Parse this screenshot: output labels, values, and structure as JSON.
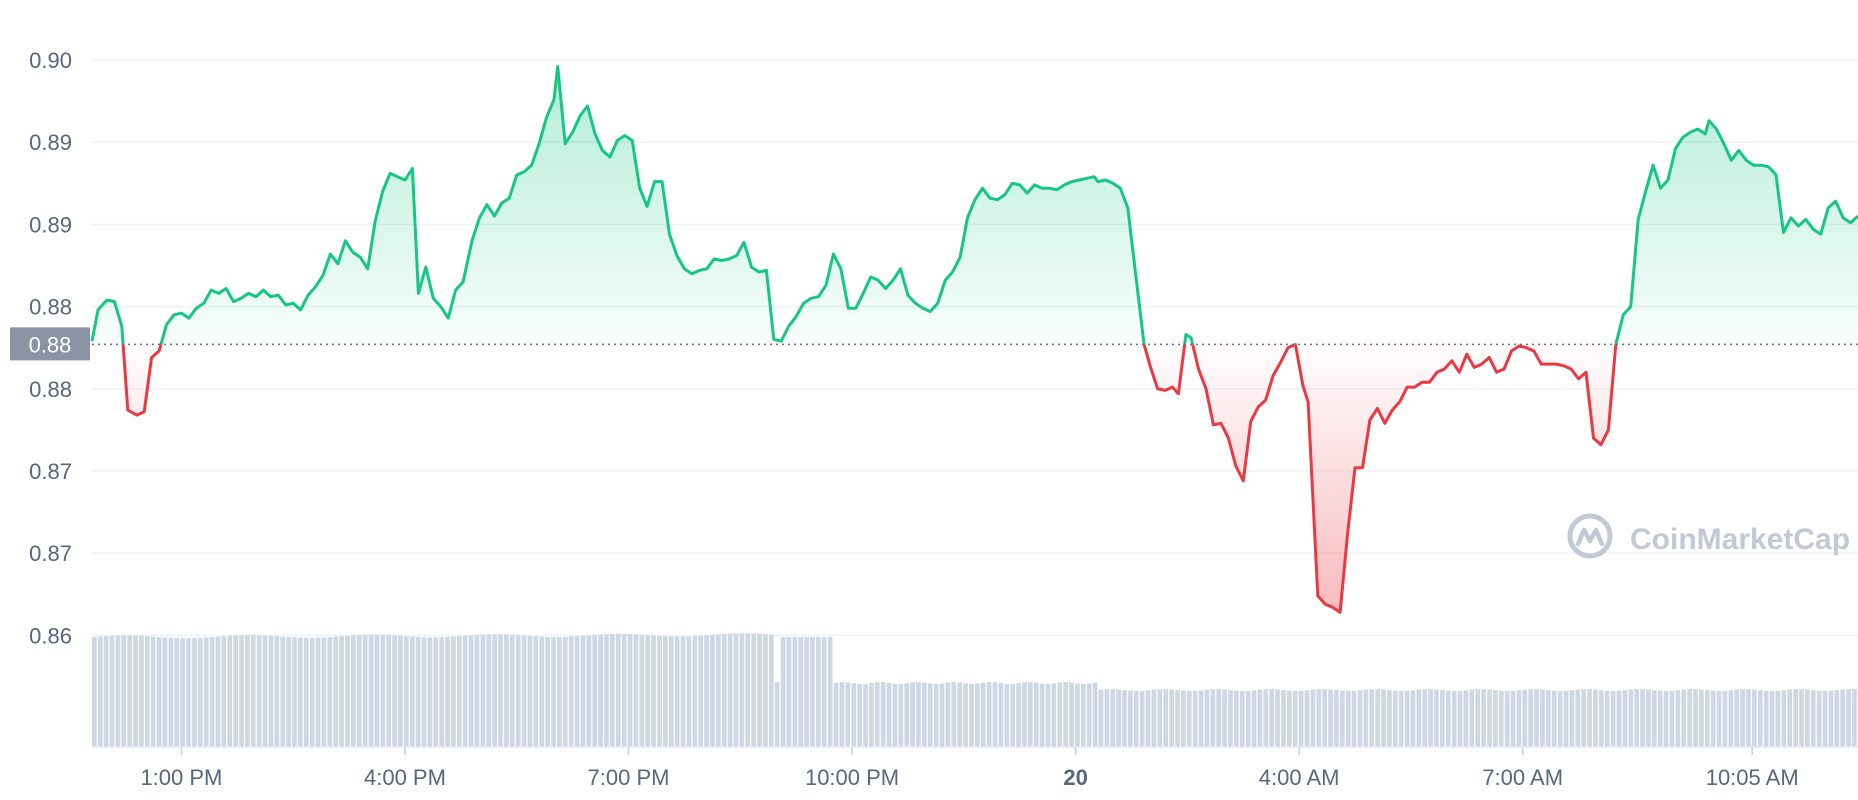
{
  "chart_data": {
    "type": "area",
    "title": "",
    "watermark": "CoinMarketCap",
    "y_ticks": [
      "0.90",
      "0.89",
      "0.89",
      "0.88",
      "0.88",
      "0.87",
      "0.87",
      "0.86"
    ],
    "y_tick_values": [
      0.9,
      0.895,
      0.89,
      0.885,
      0.88,
      0.875,
      0.87,
      0.865
    ],
    "ylim": [
      0.8618,
      0.9017
    ],
    "x_ticks": [
      {
        "label": "1:00 PM",
        "t": 1.0,
        "bold": false
      },
      {
        "label": "4:00 PM",
        "t": 4.0,
        "bold": false
      },
      {
        "label": "7:00 PM",
        "t": 7.0,
        "bold": false
      },
      {
        "label": "10:00 PM",
        "t": 10.0,
        "bold": false
      },
      {
        "label": "20",
        "t": 13.0,
        "bold": true
      },
      {
        "label": "4:00 AM",
        "t": 16.0,
        "bold": false
      },
      {
        "label": "7:00 AM",
        "t": 19.0,
        "bold": false
      },
      {
        "label": "10:05 AM",
        "t": 22.08,
        "bold": false
      }
    ],
    "xlim": [
      -0.2,
      23.5
    ],
    "baseline_value": 0.8827,
    "baseline_label": "0.88",
    "colors": {
      "above": "#16c784",
      "below": "#ea3943",
      "volume": "#cfd6e4",
      "grid": "#eff2f5",
      "badge": "#8993a4"
    },
    "price": [
      [
        -0.2,
        0.8829
      ],
      [
        -0.12,
        0.8848
      ],
      [
        0.0,
        0.8854
      ],
      [
        0.1,
        0.8853
      ],
      [
        0.2,
        0.8838
      ],
      [
        0.28,
        0.8787
      ],
      [
        0.4,
        0.8784
      ],
      [
        0.5,
        0.8786
      ],
      [
        0.6,
        0.8819
      ],
      [
        0.7,
        0.8823
      ],
      [
        0.8,
        0.8839
      ],
      [
        0.9,
        0.8845
      ],
      [
        1.0,
        0.8846
      ],
      [
        1.1,
        0.8843
      ],
      [
        1.2,
        0.8849
      ],
      [
        1.3,
        0.8852
      ],
      [
        1.4,
        0.886
      ],
      [
        1.5,
        0.8858
      ],
      [
        1.6,
        0.8861
      ],
      [
        1.7,
        0.8853
      ],
      [
        1.8,
        0.8855
      ],
      [
        1.9,
        0.8858
      ],
      [
        2.0,
        0.8856
      ],
      [
        2.1,
        0.886
      ],
      [
        2.2,
        0.8856
      ],
      [
        2.3,
        0.8857
      ],
      [
        2.4,
        0.8851
      ],
      [
        2.5,
        0.8852
      ],
      [
        2.6,
        0.8848
      ],
      [
        2.7,
        0.8857
      ],
      [
        2.8,
        0.8862
      ],
      [
        2.9,
        0.8869
      ],
      [
        3.0,
        0.8882
      ],
      [
        3.1,
        0.8876
      ],
      [
        3.2,
        0.889
      ],
      [
        3.3,
        0.8883
      ],
      [
        3.4,
        0.888
      ],
      [
        3.5,
        0.8873
      ],
      [
        3.6,
        0.8902
      ],
      [
        3.7,
        0.892
      ],
      [
        3.8,
        0.8931
      ],
      [
        3.9,
        0.8929
      ],
      [
        4.0,
        0.8927
      ],
      [
        4.1,
        0.8934
      ],
      [
        4.18,
        0.8858
      ],
      [
        4.28,
        0.8874
      ],
      [
        4.38,
        0.8855
      ],
      [
        4.48,
        0.885
      ],
      [
        4.58,
        0.8843
      ],
      [
        4.68,
        0.886
      ],
      [
        4.78,
        0.8865
      ],
      [
        4.9,
        0.889
      ],
      [
        5.0,
        0.8904
      ],
      [
        5.1,
        0.8912
      ],
      [
        5.2,
        0.8905
      ],
      [
        5.3,
        0.8913
      ],
      [
        5.4,
        0.8916
      ],
      [
        5.5,
        0.893
      ],
      [
        5.6,
        0.8932
      ],
      [
        5.7,
        0.8936
      ],
      [
        5.8,
        0.8949
      ],
      [
        5.9,
        0.8965
      ],
      [
        6.0,
        0.8976
      ],
      [
        6.05,
        0.8996
      ],
      [
        6.15,
        0.8949
      ],
      [
        6.25,
        0.8956
      ],
      [
        6.35,
        0.8966
      ],
      [
        6.45,
        0.8972
      ],
      [
        6.55,
        0.8955
      ],
      [
        6.65,
        0.8945
      ],
      [
        6.75,
        0.8941
      ],
      [
        6.85,
        0.8951
      ],
      [
        6.95,
        0.8954
      ],
      [
        7.05,
        0.8951
      ],
      [
        7.15,
        0.8922
      ],
      [
        7.25,
        0.8911
      ],
      [
        7.35,
        0.8926
      ],
      [
        7.45,
        0.8926
      ],
      [
        7.55,
        0.8894
      ],
      [
        7.65,
        0.8881
      ],
      [
        7.75,
        0.8873
      ],
      [
        7.85,
        0.887
      ],
      [
        7.95,
        0.8872
      ],
      [
        8.05,
        0.8873
      ],
      [
        8.15,
        0.8879
      ],
      [
        8.25,
        0.8878
      ],
      [
        8.35,
        0.8879
      ],
      [
        8.45,
        0.8881
      ],
      [
        8.55,
        0.8889
      ],
      [
        8.65,
        0.8874
      ],
      [
        8.75,
        0.8871
      ],
      [
        8.85,
        0.8872
      ],
      [
        8.95,
        0.883
      ],
      [
        9.05,
        0.8829
      ],
      [
        9.15,
        0.8838
      ],
      [
        9.25,
        0.8844
      ],
      [
        9.35,
        0.8852
      ],
      [
        9.45,
        0.8855
      ],
      [
        9.55,
        0.8856
      ],
      [
        9.65,
        0.8863
      ],
      [
        9.75,
        0.8882
      ],
      [
        9.85,
        0.8873
      ],
      [
        9.95,
        0.8849
      ],
      [
        10.05,
        0.8849
      ],
      [
        10.15,
        0.8858
      ],
      [
        10.25,
        0.8868
      ],
      [
        10.35,
        0.8866
      ],
      [
        10.45,
        0.8861
      ],
      [
        10.55,
        0.8866
      ],
      [
        10.65,
        0.8873
      ],
      [
        10.75,
        0.8857
      ],
      [
        10.85,
        0.8852
      ],
      [
        10.95,
        0.8849
      ],
      [
        11.05,
        0.8847
      ],
      [
        11.15,
        0.8852
      ],
      [
        11.25,
        0.8866
      ],
      [
        11.35,
        0.8871
      ],
      [
        11.45,
        0.888
      ],
      [
        11.55,
        0.8904
      ],
      [
        11.65,
        0.8915
      ],
      [
        11.75,
        0.8922
      ],
      [
        11.85,
        0.8916
      ],
      [
        11.95,
        0.8915
      ],
      [
        12.05,
        0.8918
      ],
      [
        12.15,
        0.8925
      ],
      [
        12.25,
        0.8924
      ],
      [
        12.35,
        0.8919
      ],
      [
        12.45,
        0.8924
      ],
      [
        12.55,
        0.8922
      ],
      [
        12.65,
        0.8922
      ],
      [
        12.75,
        0.8921
      ],
      [
        12.85,
        0.8924
      ],
      [
        12.95,
        0.8926
      ],
      [
        13.05,
        0.8927
      ],
      [
        13.15,
        0.8928
      ],
      [
        13.25,
        0.8929
      ],
      [
        13.3,
        0.8926
      ],
      [
        13.4,
        0.8927
      ],
      [
        13.5,
        0.8925
      ],
      [
        13.6,
        0.8922
      ],
      [
        13.7,
        0.891
      ],
      [
        13.8,
        0.8872
      ],
      [
        13.92,
        0.8827
      ],
      [
        14.0,
        0.8814
      ],
      [
        14.1,
        0.88
      ],
      [
        14.2,
        0.8799
      ],
      [
        14.3,
        0.8801
      ],
      [
        14.38,
        0.8797
      ],
      [
        14.48,
        0.8833
      ],
      [
        14.55,
        0.8831
      ],
      [
        14.65,
        0.8812
      ],
      [
        14.75,
        0.88
      ],
      [
        14.85,
        0.8778
      ],
      [
        14.95,
        0.8779
      ],
      [
        15.05,
        0.877
      ],
      [
        15.15,
        0.8753
      ],
      [
        15.25,
        0.8744
      ],
      [
        15.35,
        0.878
      ],
      [
        15.45,
        0.8789
      ],
      [
        15.55,
        0.8793
      ],
      [
        15.65,
        0.8808
      ],
      [
        15.75,
        0.8816
      ],
      [
        15.85,
        0.8825
      ],
      [
        15.95,
        0.8827
      ],
      [
        16.05,
        0.8802
      ],
      [
        16.12,
        0.8792
      ],
      [
        16.25,
        0.8674
      ],
      [
        16.35,
        0.8669
      ],
      [
        16.45,
        0.8667
      ],
      [
        16.55,
        0.8664
      ],
      [
        16.65,
        0.8712
      ],
      [
        16.75,
        0.8752
      ],
      [
        16.85,
        0.8752
      ],
      [
        16.95,
        0.8781
      ],
      [
        17.05,
        0.8788
      ],
      [
        17.15,
        0.8779
      ],
      [
        17.25,
        0.8787
      ],
      [
        17.35,
        0.8792
      ],
      [
        17.45,
        0.8801
      ],
      [
        17.55,
        0.8801
      ],
      [
        17.65,
        0.8804
      ],
      [
        17.75,
        0.8804
      ],
      [
        17.85,
        0.881
      ],
      [
        17.95,
        0.8812
      ],
      [
        18.05,
        0.8817
      ],
      [
        18.15,
        0.881
      ],
      [
        18.25,
        0.8821
      ],
      [
        18.35,
        0.8813
      ],
      [
        18.45,
        0.8815
      ],
      [
        18.55,
        0.8819
      ],
      [
        18.65,
        0.881
      ],
      [
        18.75,
        0.8812
      ],
      [
        18.85,
        0.8823
      ],
      [
        18.95,
        0.8826
      ],
      [
        19.05,
        0.8825
      ],
      [
        19.15,
        0.8823
      ],
      [
        19.25,
        0.8815
      ],
      [
        19.35,
        0.8815
      ],
      [
        19.45,
        0.8815
      ],
      [
        19.55,
        0.8814
      ],
      [
        19.65,
        0.8812
      ],
      [
        19.75,
        0.8806
      ],
      [
        19.85,
        0.881
      ],
      [
        19.95,
        0.877
      ],
      [
        20.05,
        0.8766
      ],
      [
        20.15,
        0.8775
      ],
      [
        20.25,
        0.8827
      ],
      [
        20.35,
        0.8845
      ],
      [
        20.45,
        0.885
      ],
      [
        20.55,
        0.8903
      ],
      [
        20.65,
        0.892
      ],
      [
        20.75,
        0.8936
      ],
      [
        20.85,
        0.8922
      ],
      [
        20.95,
        0.8927
      ],
      [
        21.05,
        0.8946
      ],
      [
        21.15,
        0.8953
      ],
      [
        21.25,
        0.8956
      ],
      [
        21.35,
        0.8958
      ],
      [
        21.45,
        0.8955
      ],
      [
        21.5,
        0.8963
      ],
      [
        21.6,
        0.8958
      ],
      [
        21.7,
        0.8949
      ],
      [
        21.8,
        0.8939
      ],
      [
        21.9,
        0.8945
      ],
      [
        22.0,
        0.8939
      ],
      [
        22.1,
        0.8936
      ],
      [
        22.2,
        0.8936
      ],
      [
        22.3,
        0.8935
      ],
      [
        22.4,
        0.893
      ],
      [
        22.5,
        0.8895
      ],
      [
        22.6,
        0.8904
      ],
      [
        22.7,
        0.8899
      ],
      [
        22.8,
        0.8903
      ],
      [
        22.9,
        0.8897
      ],
      [
        23.0,
        0.8894
      ],
      [
        23.1,
        0.891
      ],
      [
        23.2,
        0.8914
      ],
      [
        23.3,
        0.8904
      ],
      [
        23.4,
        0.8901
      ],
      [
        23.5,
        0.8905
      ]
    ]
  }
}
